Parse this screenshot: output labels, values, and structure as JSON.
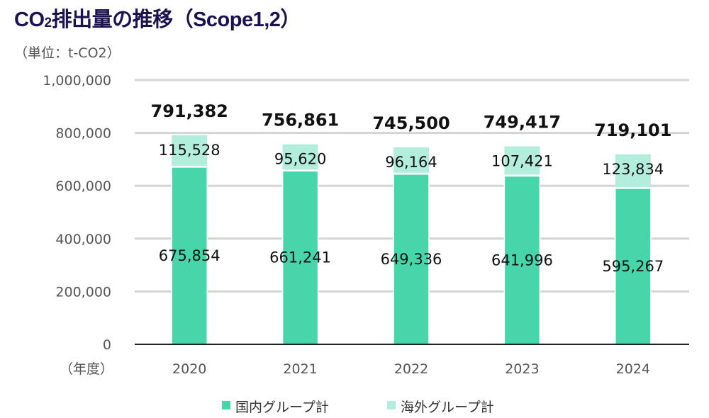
{
  "chart_data": {
    "type": "bar",
    "stacked": true,
    "title": "CO2排出量の推移（Scope1,2）",
    "ylabel": "（単位：t-CO2）",
    "xlabel": "（年度）",
    "categories": [
      "2020",
      "2021",
      "2022",
      "2023",
      "2024"
    ],
    "series": [
      {
        "name": "国内グループ計",
        "values": [
          675854,
          661241,
          649336,
          641996,
          595267
        ],
        "color": "#47d6aa"
      },
      {
        "name": "海外グループ計",
        "values": [
          115528,
          95620,
          96164,
          107421,
          123834
        ],
        "color": "#b3eedc"
      }
    ],
    "totals": [
      791382,
      756861,
      745500,
      749417,
      719101
    ],
    "ylim": [
      0,
      1000000
    ],
    "yticks": [
      0,
      200000,
      400000,
      600000,
      800000,
      1000000
    ],
    "ytick_labels": [
      "0",
      "200,000",
      "400,000",
      "600,000",
      "800,000",
      "1,000,000"
    ],
    "grid": true,
    "legend_position": "bottom"
  }
}
